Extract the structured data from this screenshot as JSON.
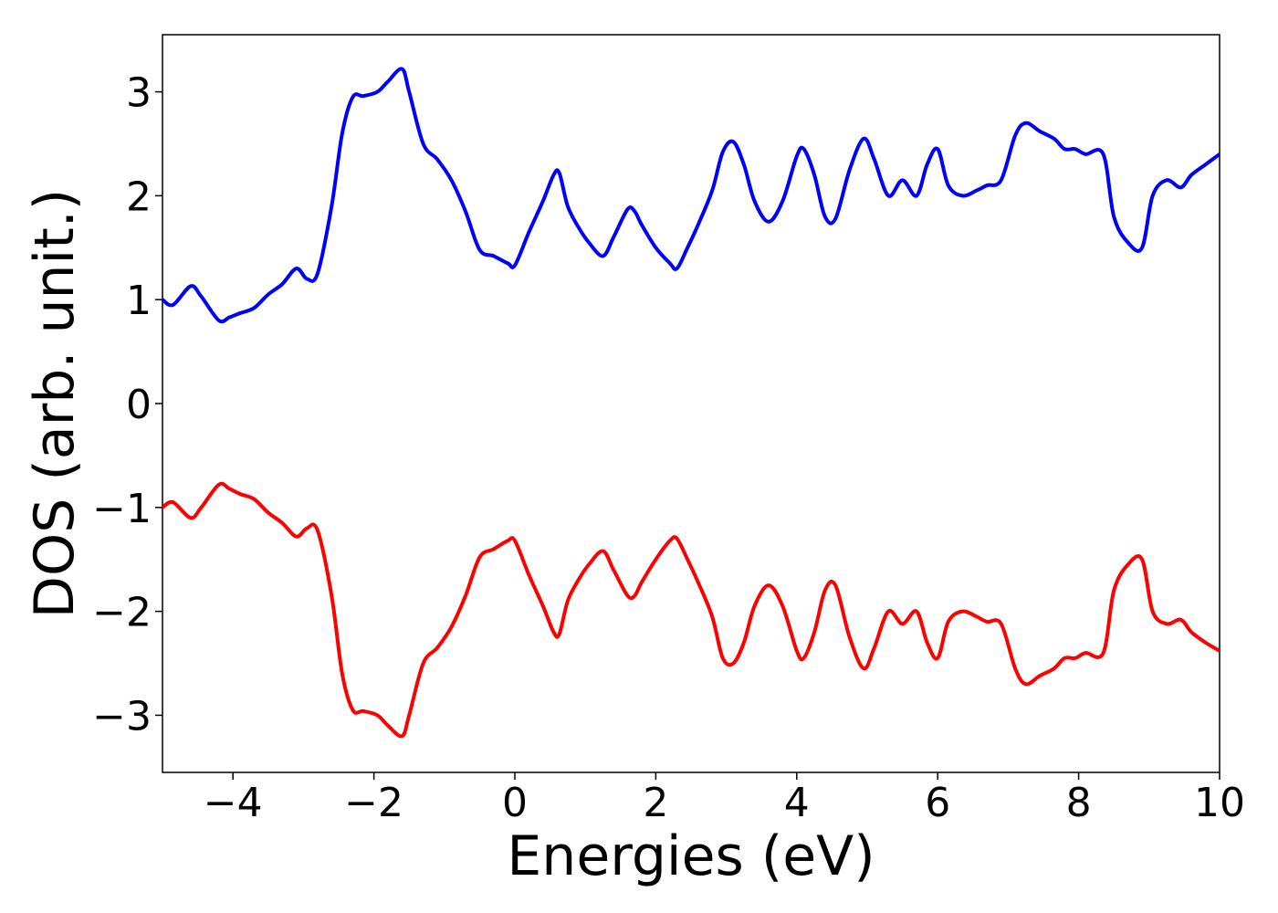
{
  "chart_data": {
    "type": "line",
    "title": "",
    "xlabel": "Energies (eV)",
    "ylabel": "DOS (arb. unit.)",
    "xlim": [
      -5,
      10
    ],
    "ylim": [
      -3.55,
      3.55
    ],
    "x_ticks": [
      {
        "value": -4,
        "label": "−4"
      },
      {
        "value": -2,
        "label": "−2"
      },
      {
        "value": 0,
        "label": "0"
      },
      {
        "value": 2,
        "label": "2"
      },
      {
        "value": 4,
        "label": "4"
      },
      {
        "value": 6,
        "label": "6"
      },
      {
        "value": 8,
        "label": "8"
      },
      {
        "value": 10,
        "label": "10"
      }
    ],
    "y_ticks": [
      {
        "value": -3,
        "label": "−3"
      },
      {
        "value": -2,
        "label": "−2"
      },
      {
        "value": -1,
        "label": "−1"
      },
      {
        "value": 0,
        "label": "0"
      },
      {
        "value": 1,
        "label": "1"
      },
      {
        "value": 2,
        "label": "2"
      },
      {
        "value": 3,
        "label": "3"
      }
    ],
    "grid": false,
    "legend": "none",
    "series": [
      {
        "color": "#0000ff",
        "x": [
          -5.0,
          -4.85,
          -4.6,
          -4.45,
          -4.2,
          -4.05,
          -3.9,
          -3.7,
          -3.5,
          -3.3,
          -3.1,
          -2.95,
          -2.8,
          -2.6,
          -2.45,
          -2.3,
          -2.15,
          -1.95,
          -1.8,
          -1.6,
          -1.5,
          -1.3,
          -1.1,
          -0.9,
          -0.7,
          -0.5,
          -0.3,
          -0.1,
          0.0,
          0.2,
          0.4,
          0.55,
          0.63,
          0.75,
          0.9,
          1.05,
          1.25,
          1.4,
          1.6,
          1.7,
          1.8,
          2.0,
          2.2,
          2.3,
          2.45,
          2.6,
          2.8,
          2.95,
          3.1,
          3.25,
          3.4,
          3.6,
          3.8,
          4.0,
          4.1,
          4.25,
          4.4,
          4.55,
          4.75,
          4.95,
          5.1,
          5.3,
          5.5,
          5.7,
          5.85,
          6.0,
          6.15,
          6.35,
          6.55,
          6.7,
          6.9,
          7.1,
          7.25,
          7.45,
          7.65,
          7.8,
          7.95,
          8.1,
          8.35,
          8.5,
          8.7,
          8.9,
          9.05,
          9.25,
          9.45,
          9.6,
          9.8,
          10.0
        ],
        "values": [
          1.0,
          0.95,
          1.13,
          1.03,
          0.8,
          0.83,
          0.87,
          0.92,
          1.05,
          1.15,
          1.3,
          1.2,
          1.25,
          1.9,
          2.6,
          2.95,
          2.96,
          3.0,
          3.1,
          3.22,
          3.0,
          2.5,
          2.35,
          2.15,
          1.85,
          1.48,
          1.42,
          1.35,
          1.33,
          1.65,
          1.95,
          2.2,
          2.22,
          1.9,
          1.7,
          1.55,
          1.42,
          1.6,
          1.87,
          1.85,
          1.72,
          1.5,
          1.35,
          1.3,
          1.5,
          1.72,
          2.05,
          2.42,
          2.52,
          2.3,
          1.95,
          1.75,
          1.95,
          2.38,
          2.45,
          2.2,
          1.8,
          1.78,
          2.25,
          2.55,
          2.35,
          2.0,
          2.15,
          2.0,
          2.3,
          2.45,
          2.1,
          2.0,
          2.05,
          2.1,
          2.15,
          2.58,
          2.7,
          2.62,
          2.55,
          2.45,
          2.45,
          2.4,
          2.4,
          1.8,
          1.55,
          1.5,
          2.0,
          2.15,
          2.08,
          2.2,
          2.3,
          2.4
        ]
      },
      {
        "color": "#ff0000",
        "x": [
          -5.0,
          -4.85,
          -4.6,
          -4.45,
          -4.2,
          -4.05,
          -3.9,
          -3.7,
          -3.5,
          -3.3,
          -3.1,
          -2.95,
          -2.8,
          -2.6,
          -2.45,
          -2.3,
          -2.15,
          -1.95,
          -1.8,
          -1.6,
          -1.5,
          -1.3,
          -1.1,
          -0.9,
          -0.7,
          -0.5,
          -0.3,
          -0.1,
          0.0,
          0.2,
          0.4,
          0.55,
          0.63,
          0.75,
          0.9,
          1.05,
          1.25,
          1.4,
          1.6,
          1.7,
          1.8,
          2.0,
          2.2,
          2.3,
          2.45,
          2.6,
          2.8,
          2.95,
          3.1,
          3.25,
          3.4,
          3.6,
          3.8,
          4.0,
          4.1,
          4.25,
          4.4,
          4.55,
          4.75,
          4.95,
          5.1,
          5.3,
          5.5,
          5.7,
          5.85,
          6.0,
          6.15,
          6.35,
          6.55,
          6.7,
          6.9,
          7.1,
          7.25,
          7.45,
          7.65,
          7.8,
          7.95,
          8.1,
          8.35,
          8.5,
          8.7,
          8.9,
          9.05,
          9.25,
          9.45,
          9.6,
          9.8,
          10.0
        ],
        "values": [
          -1.0,
          -0.95,
          -1.1,
          -1.0,
          -0.78,
          -0.82,
          -0.87,
          -0.92,
          -1.05,
          -1.15,
          -1.28,
          -1.2,
          -1.22,
          -1.85,
          -2.6,
          -2.95,
          -2.96,
          -3.0,
          -3.1,
          -3.2,
          -3.0,
          -2.5,
          -2.35,
          -2.15,
          -1.85,
          -1.48,
          -1.4,
          -1.32,
          -1.32,
          -1.65,
          -1.95,
          -2.2,
          -2.22,
          -1.9,
          -1.7,
          -1.55,
          -1.42,
          -1.6,
          -1.85,
          -1.85,
          -1.72,
          -1.5,
          -1.32,
          -1.3,
          -1.5,
          -1.72,
          -2.05,
          -2.45,
          -2.5,
          -2.3,
          -1.95,
          -1.75,
          -1.95,
          -2.38,
          -2.45,
          -2.2,
          -1.8,
          -1.75,
          -2.25,
          -2.55,
          -2.35,
          -2.0,
          -2.12,
          -2.0,
          -2.3,
          -2.45,
          -2.1,
          -2.0,
          -2.05,
          -2.1,
          -2.12,
          -2.55,
          -2.7,
          -2.62,
          -2.55,
          -2.45,
          -2.45,
          -2.4,
          -2.4,
          -1.8,
          -1.55,
          -1.5,
          -2.0,
          -2.12,
          -2.08,
          -2.2,
          -2.3,
          -2.38
        ]
      }
    ]
  }
}
